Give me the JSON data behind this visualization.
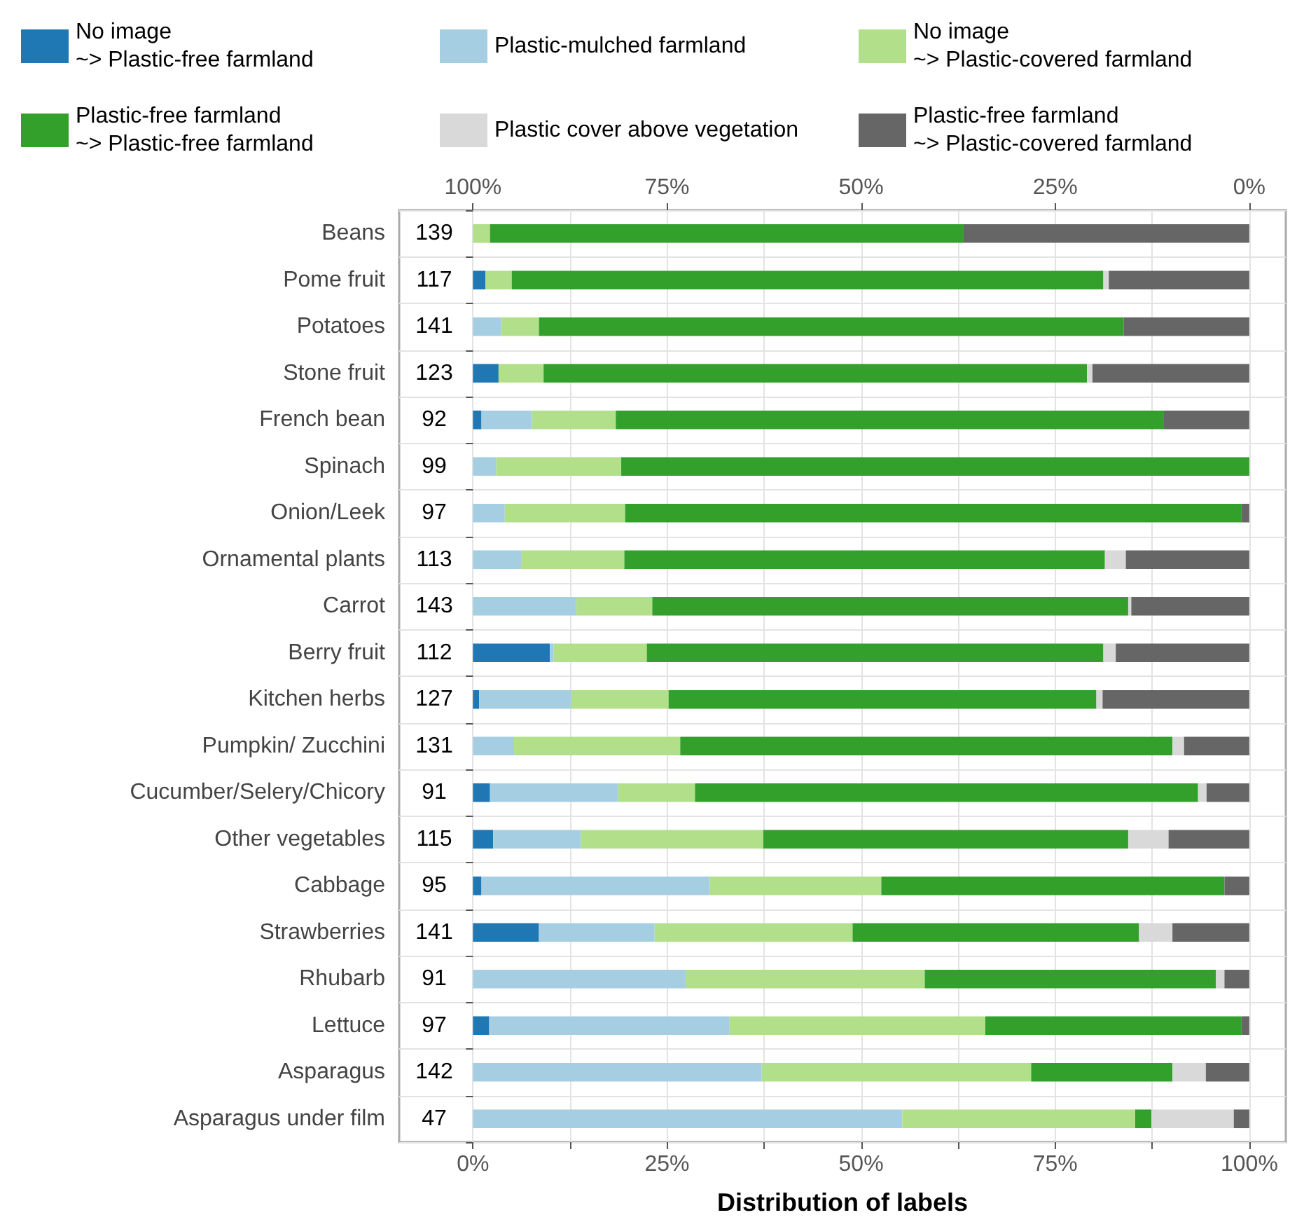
{
  "chart_data": {
    "type": "bar",
    "orientation": "horizontal",
    "stacked": true,
    "xlabel": "Distribution of labels",
    "categories": [
      "Beans",
      "Pome fruit",
      "Potatoes",
      "Stone fruit",
      "French bean",
      "Spinach",
      "Onion/Leek",
      "Ornamental plants",
      "Carrot",
      "Berry fruit",
      "Kitchen herbs",
      "Pumpkin/ Zucchini",
      "Cucumber/Selery/Chicory",
      "Other vegetables",
      "Cabbage",
      "Strawberries",
      "Rhubarb",
      "Lettuce",
      "Asparagus",
      "Asparagus under film"
    ],
    "series": [
      {
        "name": "No image\n~> Plastic-free farmland",
        "color": "#1f78b4",
        "values": [
          0,
          1.6,
          0,
          3.3,
          1.1,
          0,
          0,
          0,
          0,
          9.9,
          0.8,
          0,
          2.2,
          2.6,
          1.1,
          8.5,
          0,
          2.1,
          0,
          0
        ]
      },
      {
        "name": "Plastic-mulched farmland",
        "color": "#a6cee3",
        "values": [
          0,
          0,
          3.6,
          0,
          6.5,
          3.0,
          4.1,
          6.2,
          13.3,
          0.5,
          11.8,
          5.3,
          16.5,
          11.3,
          29.4,
          14.9,
          27.4,
          30.9,
          37.2,
          55.3
        ]
      },
      {
        "name": "No image\n~> Plastic-covered farmland",
        "color": "#b2df8a",
        "values": [
          2.2,
          3.4,
          4.9,
          5.8,
          10.8,
          16.1,
          15.5,
          13.3,
          9.8,
          12.0,
          12.6,
          21.4,
          9.9,
          23.5,
          22.1,
          25.5,
          30.8,
          33.0,
          34.7,
          30.0
        ]
      },
      {
        "name": "Plastic-free farmland\n~> Plastic-free farmland",
        "color": "#33a02c",
        "values": [
          61.0,
          76.2,
          75.3,
          70.0,
          70.6,
          80.9,
          79.4,
          61.9,
          61.3,
          58.8,
          55.1,
          63.4,
          64.8,
          47.0,
          44.2,
          36.9,
          37.5,
          33.0,
          18.2,
          2.1
        ]
      },
      {
        "name": "Plastic cover above vegetation",
        "color": "#d9d9d9",
        "values": [
          0,
          0.7,
          0,
          0.7,
          0,
          0,
          0,
          2.7,
          0.4,
          1.6,
          0.8,
          1.5,
          1.1,
          5.2,
          0,
          4.3,
          1.1,
          0,
          4.3,
          10.6
        ]
      },
      {
        "name": "Plastic-free farmland\n~> Plastic-covered farmland",
        "color": "#666666",
        "values": [
          36.8,
          18.1,
          16.2,
          20.2,
          11.0,
          0,
          1.0,
          15.9,
          15.2,
          17.2,
          18.9,
          8.4,
          5.5,
          10.4,
          3.2,
          9.9,
          3.2,
          1.0,
          5.6,
          2.0
        ]
      }
    ],
    "annotations": [
      "139",
      "117",
      "141",
      "123",
      "92",
      "99",
      "97",
      "113",
      "143",
      "112",
      "127",
      "131",
      "91",
      "115",
      "95",
      "141",
      "91",
      "97",
      "142",
      "47"
    ],
    "xlim": [
      -9.5,
      104.7
    ],
    "xticks": [
      {
        "value": 0,
        "label": "0%"
      },
      {
        "value": 12.5,
        "label": null
      },
      {
        "value": 25,
        "label": "25%"
      },
      {
        "value": 37.5,
        "label": null
      },
      {
        "value": 50,
        "label": "50%"
      },
      {
        "value": 62.5,
        "label": null
      },
      {
        "value": 75,
        "label": "75%"
      },
      {
        "value": 87.5,
        "label": null
      },
      {
        "value": 100,
        "label": "100%"
      }
    ],
    "x2lim": [
      109.5,
      -4.7
    ],
    "x2ticks": [
      {
        "value": 100,
        "label": "100%"
      },
      {
        "value": 75,
        "label": "75%"
      },
      {
        "value": 50,
        "label": "50%"
      },
      {
        "value": 25,
        "label": "25%"
      },
      {
        "value": 0,
        "label": "0%"
      }
    ],
    "grid": true,
    "legend": "top"
  }
}
